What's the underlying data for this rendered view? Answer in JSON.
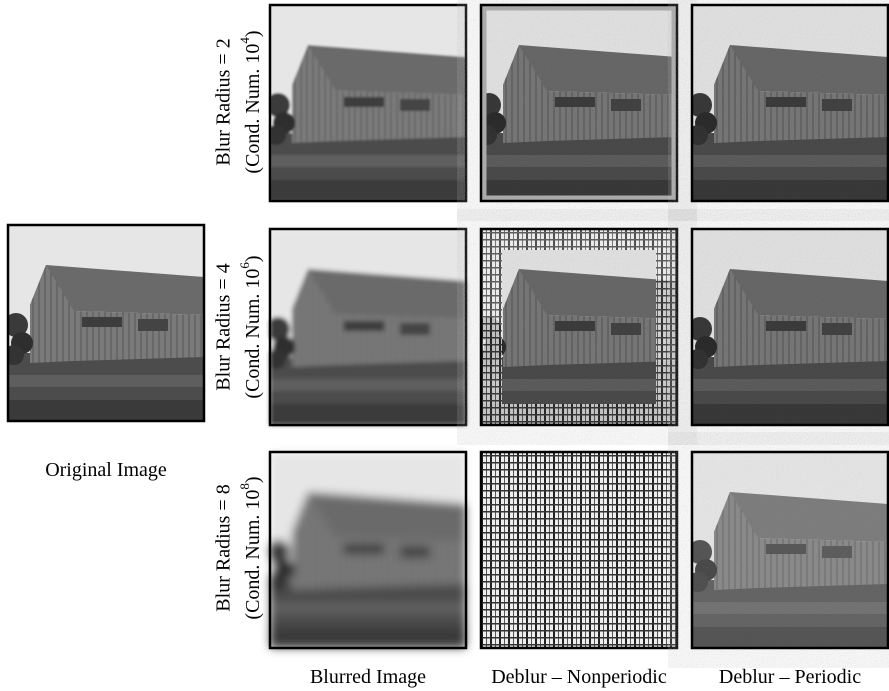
{
  "rows": [
    {
      "label": "Blur Radius = 2",
      "cond_prefix": "(Cond. Num. 10",
      "cond_exp": "4",
      "cond_suffix": ")"
    },
    {
      "label": "Blur Radius = 4",
      "cond_prefix": "(Cond. Num. 10",
      "cond_exp": "6",
      "cond_suffix": ")"
    },
    {
      "label": "Blur Radius = 8",
      "cond_prefix": "(Cond. Num. 10",
      "cond_exp": "8",
      "cond_suffix": ")"
    }
  ],
  "original_label": "Original Image",
  "columns": [
    "Blurred Image",
    "Deblur – Nonperiodic",
    "Deblur – Periodic"
  ]
}
